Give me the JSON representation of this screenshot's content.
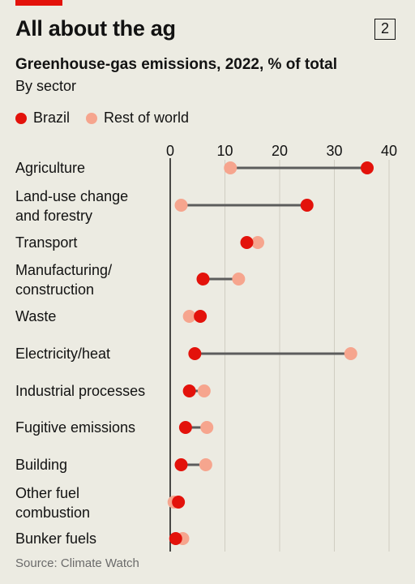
{
  "header": {
    "title": "All about the ag",
    "badge": "2"
  },
  "chart_data": {
    "type": "dot-range",
    "title": "Greenhouse-gas emissions, 2022, % of total",
    "subtitle": "By sector",
    "xlim": [
      0,
      40
    ],
    "xticks": [
      0,
      10,
      20,
      30,
      40
    ],
    "grid": true,
    "legend": "top-left",
    "categories": [
      [
        "Agriculture"
      ],
      [
        "Land-use change",
        "and forestry"
      ],
      [
        "Transport"
      ],
      [
        "Manufacturing/",
        "construction"
      ],
      [
        "Waste"
      ],
      [
        "Electricity/heat"
      ],
      [
        "Industrial processes"
      ],
      [
        "Fugitive emissions"
      ],
      [
        "Building"
      ],
      [
        "Other fuel",
        "combustion"
      ],
      [
        "Bunker fuels"
      ]
    ],
    "series": [
      {
        "name": "Brazil",
        "color": "#e3120b",
        "values": [
          36,
          25,
          14,
          6,
          5.5,
          4.5,
          3.5,
          2.8,
          2.0,
          1.5,
          1.0
        ]
      },
      {
        "name": "Rest of world",
        "color": "#f6a58e",
        "values": [
          11,
          2,
          16,
          12.5,
          3.5,
          33,
          6.2,
          6.7,
          6.5,
          0.7,
          2.3
        ]
      }
    ]
  },
  "source": "Source: Climate Watch"
}
